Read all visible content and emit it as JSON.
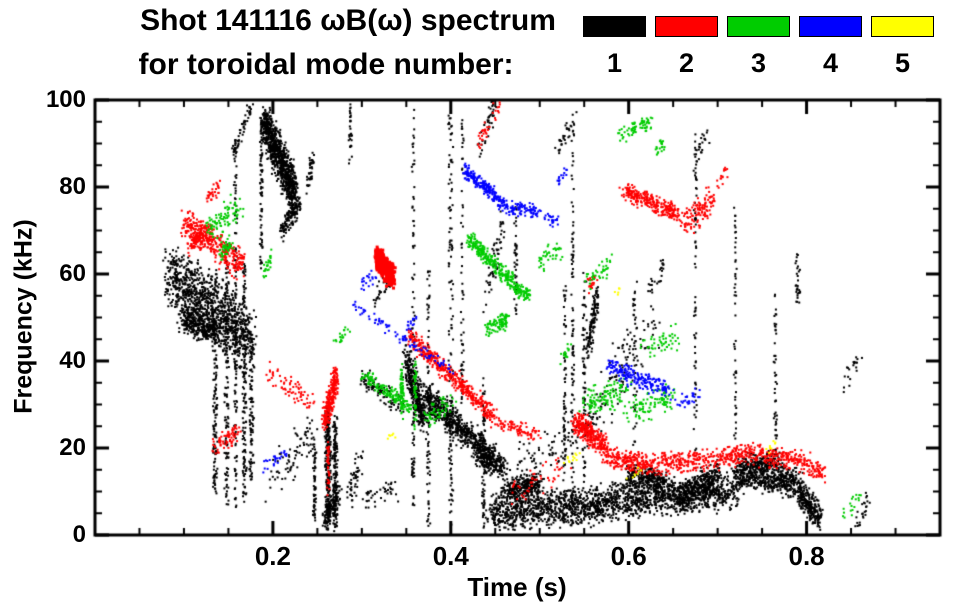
{
  "chart_data": {
    "type": "scatter",
    "title": "Shot 141116 ωB(ω) spectrum",
    "subtitle": "for toroidal mode number:",
    "xlabel": "Time (s)",
    "ylabel": "Frequency (kHz)",
    "xlim": [
      0,
      0.95
    ],
    "ylim": [
      0,
      100
    ],
    "xticks": [
      0.2,
      0.4,
      0.6,
      0.8
    ],
    "xtick_labels": [
      "0.2",
      "0.4",
      "0.6",
      "0.8"
    ],
    "yticks": [
      0,
      20,
      40,
      60,
      80,
      100
    ],
    "ytick_labels": [
      "0",
      "20",
      "40",
      "60",
      "80",
      "100"
    ],
    "x_minor_step": 0.05,
    "y_minor_step": 5,
    "grid": false,
    "legend_position": "top-right",
    "background": "#ffffff",
    "axis_color": "#000000",
    "segment_format": "[t_start, f_start, t_end, f_end, count, time_jitter, freq_jitter, point_size(optional, default 2)]",
    "series": [
      {
        "name": "1",
        "color": "#000000",
        "segments": [
          [
            0.085,
            60,
            0.175,
            45,
            1000,
            0.012,
            9
          ],
          [
            0.1,
            50,
            0.135,
            47,
            300,
            0.01,
            4
          ],
          [
            0.135,
            10,
            0.135,
            60,
            150,
            0.003,
            2
          ],
          [
            0.148,
            8,
            0.148,
            68,
            150,
            0.003,
            2
          ],
          [
            0.158,
            5,
            0.158,
            90,
            120,
            0.002,
            2
          ],
          [
            0.168,
            8,
            0.168,
            62,
            150,
            0.003,
            2
          ],
          [
            0.176,
            12,
            0.176,
            48,
            100,
            0.003,
            2
          ],
          [
            0.155,
            88,
            0.175,
            98,
            60,
            0.004,
            3
          ],
          [
            0.19,
            95,
            0.225,
            78,
            900,
            0.006,
            6
          ],
          [
            0.187,
            60,
            0.187,
            95,
            80,
            0.002,
            2
          ],
          [
            0.21,
            70,
            0.23,
            76,
            120,
            0.004,
            3
          ],
          [
            0.24,
            80,
            0.245,
            88,
            40,
            0.003,
            2
          ],
          [
            0.2,
            12,
            0.25,
            25,
            80,
            0.01,
            6
          ],
          [
            0.247,
            4,
            0.247,
            20,
            60,
            0.002,
            2
          ],
          [
            0.262,
            2,
            0.262,
            30,
            250,
            0.004,
            2
          ],
          [
            0.27,
            2,
            0.27,
            26,
            150,
            0.003,
            2
          ],
          [
            0.258,
            3,
            0.275,
            10,
            120,
            0.005,
            3
          ],
          [
            0.285,
            8,
            0.3,
            18,
            50,
            0.006,
            4
          ],
          [
            0.287,
            86,
            0.287,
            99,
            30,
            0.002,
            2
          ],
          [
            0.3,
            36,
            0.35,
            29,
            100,
            0.006,
            3
          ],
          [
            0.3,
            8,
            0.34,
            10,
            40,
            0.01,
            3
          ],
          [
            0.315,
            55,
            0.33,
            58,
            25,
            0.006,
            3
          ],
          [
            0.35,
            40,
            0.37,
            26,
            350,
            0.006,
            5
          ],
          [
            0.358,
            5,
            0.358,
            98,
            90,
            0.002,
            2
          ],
          [
            0.375,
            2,
            0.375,
            60,
            80,
            0.002,
            2
          ],
          [
            0.4,
            2,
            0.4,
            98,
            130,
            0.003,
            2
          ],
          [
            0.413,
            30,
            0.413,
            95,
            60,
            0.002,
            2
          ],
          [
            0.37,
            32,
            0.45,
            17,
            700,
            0.008,
            4
          ],
          [
            0.43,
            18,
            0.46,
            15,
            150,
            0.006,
            3
          ],
          [
            0.437,
            2,
            0.437,
            35,
            80,
            0.002,
            2
          ],
          [
            0.44,
            55,
            0.46,
            72,
            60,
            0.005,
            5
          ],
          [
            0.43,
            88,
            0.45,
            99,
            40,
            0.004,
            4
          ],
          [
            0.445,
            5,
            0.58,
            7,
            900,
            0.01,
            5
          ],
          [
            0.46,
            10,
            0.5,
            12,
            300,
            0.008,
            3
          ],
          [
            0.473,
            50,
            0.473,
            75,
            40,
            0.002,
            2.5
          ],
          [
            0.47,
            15,
            0.56,
            25,
            80,
            0.02,
            5
          ],
          [
            0.528,
            5,
            0.528,
            58,
            80,
            0.002,
            2
          ],
          [
            0.537,
            5,
            0.537,
            95,
            100,
            0.002,
            2.5
          ],
          [
            0.55,
            12,
            0.55,
            60,
            70,
            0.003,
            3
          ],
          [
            0.553,
            42,
            0.565,
            55,
            120,
            0.004,
            4
          ],
          [
            0.55,
            25,
            0.63,
            50,
            120,
            0.015,
            8
          ],
          [
            0.58,
            8,
            0.72,
            10,
            900,
            0.012,
            5
          ],
          [
            0.6,
            14,
            0.64,
            12,
            250,
            0.008,
            3
          ],
          [
            0.607,
            20,
            0.607,
            58,
            40,
            0.003,
            3
          ],
          [
            0.62,
            55,
            0.64,
            62,
            25,
            0.004,
            3
          ],
          [
            0.655,
            8,
            0.7,
            14,
            300,
            0.008,
            4
          ],
          [
            0.675,
            5,
            0.675,
            92,
            70,
            0.002,
            2.5
          ],
          [
            0.67,
            83,
            0.69,
            93,
            25,
            0.004,
            3
          ],
          [
            0.72,
            14,
            0.79,
            12,
            500,
            0.008,
            4
          ],
          [
            0.73,
            16,
            0.77,
            17,
            200,
            0.006,
            3
          ],
          [
            0.72,
            20,
            0.72,
            75,
            50,
            0.002,
            2.5
          ],
          [
            0.765,
            20,
            0.765,
            62,
            45,
            0.002,
            2.5
          ],
          [
            0.79,
            54,
            0.79,
            64,
            30,
            0.003,
            2
          ],
          [
            0.79,
            10,
            0.815,
            4,
            250,
            0.005,
            4
          ],
          [
            0.52,
            88,
            0.54,
            97,
            30,
            0.004,
            3
          ],
          [
            0.84,
            32,
            0.86,
            42,
            20,
            0.008,
            4
          ],
          [
            0.855,
            2,
            0.87,
            8,
            25,
            0.004,
            2.5
          ]
        ]
      },
      {
        "name": "2",
        "color": "#ff0000",
        "segments": [
          [
            0.1,
            72,
            0.165,
            62,
            350,
            0.008,
            4
          ],
          [
            0.105,
            66,
            0.13,
            70,
            100,
            0.005,
            3
          ],
          [
            0.125,
            77,
            0.14,
            80,
            30,
            0.004,
            2
          ],
          [
            0.135,
            20,
            0.16,
            24,
            70,
            0.006,
            3
          ],
          [
            0.19,
            38,
            0.245,
            30,
            70,
            0.008,
            3
          ],
          [
            0.258,
            26,
            0.272,
            37,
            250,
            0.004,
            4
          ],
          [
            0.262,
            10,
            0.262,
            22,
            40,
            0.002,
            2
          ],
          [
            0.317,
            64,
            0.335,
            59,
            400,
            0.005,
            3,
            3
          ],
          [
            0.352,
            46,
            0.45,
            27,
            450,
            0.006,
            2.5
          ],
          [
            0.45,
            26,
            0.5,
            23,
            80,
            0.008,
            2
          ],
          [
            0.43,
            90,
            0.455,
            99,
            35,
            0.005,
            3
          ],
          [
            0.54,
            26,
            0.575,
            20,
            320,
            0.006,
            3.5
          ],
          [
            0.575,
            18,
            0.62,
            16,
            200,
            0.008,
            3
          ],
          [
            0.62,
            16,
            0.72,
            18,
            300,
            0.01,
            3
          ],
          [
            0.72,
            19,
            0.8,
            17,
            250,
            0.008,
            3
          ],
          [
            0.8,
            16,
            0.82,
            14,
            60,
            0.005,
            2.5
          ],
          [
            0.595,
            79,
            0.655,
            74,
            280,
            0.006,
            2.5
          ],
          [
            0.66,
            71,
            0.695,
            77,
            120,
            0.006,
            4
          ],
          [
            0.555,
            57,
            0.565,
            60,
            20,
            0.003,
            2
          ],
          [
            0.7,
            80,
            0.71,
            84,
            15,
            0.003,
            2
          ],
          [
            0.47,
            10,
            0.53,
            15,
            50,
            0.015,
            4
          ]
        ]
      },
      {
        "name": "3",
        "color": "#00cc00",
        "segments": [
          [
            0.125,
            70,
            0.165,
            76,
            90,
            0.008,
            4
          ],
          [
            0.14,
            64,
            0.155,
            68,
            40,
            0.004,
            2
          ],
          [
            0.19,
            60,
            0.2,
            64,
            25,
            0.003,
            2
          ],
          [
            0.3,
            37,
            0.355,
            29,
            150,
            0.006,
            1.8
          ],
          [
            0.345,
            28,
            0.345,
            38,
            60,
            0.002,
            2
          ],
          [
            0.36,
            25,
            0.36,
            40,
            50,
            0.002,
            2
          ],
          [
            0.37,
            26,
            0.4,
            31,
            60,
            0.008,
            3
          ],
          [
            0.42,
            68,
            0.47,
            58,
            260,
            0.005,
            2.2
          ],
          [
            0.47,
            57,
            0.49,
            55,
            80,
            0.004,
            2
          ],
          [
            0.44,
            47,
            0.465,
            50,
            90,
            0.005,
            2.5
          ],
          [
            0.5,
            63,
            0.525,
            66,
            40,
            0.005,
            3
          ],
          [
            0.555,
            58,
            0.58,
            62,
            40,
            0.006,
            3
          ],
          [
            0.55,
            30,
            0.6,
            34,
            120,
            0.01,
            4
          ],
          [
            0.6,
            28,
            0.65,
            32,
            100,
            0.01,
            4
          ],
          [
            0.59,
            92,
            0.625,
            95,
            70,
            0.006,
            2.5
          ],
          [
            0.63,
            88,
            0.64,
            90,
            20,
            0.003,
            2
          ],
          [
            0.615,
            42,
            0.655,
            46,
            50,
            0.008,
            3
          ],
          [
            0.84,
            4,
            0.86,
            9,
            18,
            0.005,
            2.5
          ],
          [
            0.27,
            44,
            0.285,
            47,
            20,
            0.004,
            2
          ],
          [
            0.525,
            40,
            0.535,
            44,
            15,
            0.003,
            2
          ]
        ]
      },
      {
        "name": "4",
        "color": "#0000ff",
        "segments": [
          [
            0.29,
            53,
            0.4,
            38,
            90,
            0.004,
            1.5
          ],
          [
            0.3,
            57,
            0.315,
            60,
            20,
            0.004,
            2
          ],
          [
            0.415,
            84,
            0.455,
            77,
            180,
            0.004,
            2
          ],
          [
            0.455,
            76,
            0.5,
            74,
            120,
            0.005,
            2
          ],
          [
            0.505,
            73,
            0.52,
            72,
            25,
            0.004,
            1.5
          ],
          [
            0.52,
            81,
            0.53,
            84,
            15,
            0.003,
            2
          ],
          [
            0.575,
            39,
            0.645,
            33,
            200,
            0.008,
            2.5
          ],
          [
            0.19,
            16,
            0.215,
            19,
            25,
            0.005,
            2
          ],
          [
            0.655,
            30,
            0.68,
            33,
            30,
            0.006,
            2.5
          ],
          [
            0.35,
            47,
            0.36,
            50,
            15,
            0.003,
            2
          ]
        ]
      },
      {
        "name": "5",
        "color": "#ffff00",
        "segments": [
          [
            0.528,
            17,
            0.545,
            19,
            12,
            0.004,
            2
          ],
          [
            0.6,
            13,
            0.615,
            15,
            8,
            0.004,
            1.5
          ],
          [
            0.33,
            22,
            0.34,
            24,
            6,
            0.003,
            1.5
          ],
          [
            0.755,
            19,
            0.765,
            21,
            8,
            0.003,
            1.5
          ],
          [
            0.585,
            55,
            0.59,
            57,
            5,
            0.003,
            1.5
          ]
        ]
      }
    ]
  }
}
